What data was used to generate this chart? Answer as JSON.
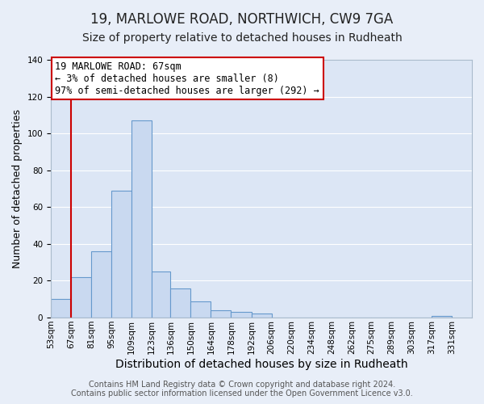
{
  "title": "19, MARLOWE ROAD, NORTHWICH, CW9 7GA",
  "subtitle": "Size of property relative to detached houses in Rudheath",
  "xlabel": "Distribution of detached houses by size in Rudheath",
  "ylabel": "Number of detached properties",
  "bar_left_edges": [
    53,
    67,
    81,
    95,
    109,
    123,
    136,
    150,
    164,
    178,
    192,
    206,
    220,
    234,
    248,
    262,
    275,
    289,
    303,
    317
  ],
  "bar_widths": [
    14,
    14,
    14,
    14,
    14,
    13,
    14,
    14,
    14,
    14,
    14,
    14,
    14,
    14,
    14,
    13,
    14,
    14,
    14,
    14
  ],
  "bar_heights": [
    10,
    22,
    36,
    69,
    107,
    25,
    16,
    9,
    4,
    3,
    2,
    0,
    0,
    0,
    0,
    0,
    0,
    0,
    0,
    1
  ],
  "x_tick_labels": [
    "53sqm",
    "67sqm",
    "81sqm",
    "95sqm",
    "109sqm",
    "123sqm",
    "136sqm",
    "150sqm",
    "164sqm",
    "178sqm",
    "192sqm",
    "206sqm",
    "220sqm",
    "234sqm",
    "248sqm",
    "262sqm",
    "275sqm",
    "289sqm",
    "303sqm",
    "317sqm",
    "331sqm"
  ],
  "x_tick_positions": [
    53,
    67,
    81,
    95,
    109,
    123,
    136,
    150,
    164,
    178,
    192,
    206,
    220,
    234,
    248,
    262,
    275,
    289,
    303,
    317,
    331
  ],
  "ylim": [
    0,
    140
  ],
  "yticks": [
    0,
    20,
    40,
    60,
    80,
    100,
    120,
    140
  ],
  "bar_color": "#c9d9f0",
  "bar_edge_color": "#6699cc",
  "red_line_x": 67,
  "annotation_title": "19 MARLOWE ROAD: 67sqm",
  "annotation_line1": "← 3% of detached houses are smaller (8)",
  "annotation_line2": "97% of semi-detached houses are larger (292) →",
  "annotation_box_color": "#ffffff",
  "annotation_box_edge": "#cc0000",
  "footer_line1": "Contains HM Land Registry data © Crown copyright and database right 2024.",
  "footer_line2": "Contains public sector information licensed under the Open Government Licence v3.0.",
  "background_color": "#e8eef8",
  "plot_bg_color": "#dce6f5",
  "grid_color": "#ffffff",
  "title_fontsize": 12,
  "subtitle_fontsize": 10,
  "xlabel_fontsize": 10,
  "ylabel_fontsize": 9,
  "tick_fontsize": 7.5,
  "annot_fontsize": 8.5,
  "footer_fontsize": 7
}
